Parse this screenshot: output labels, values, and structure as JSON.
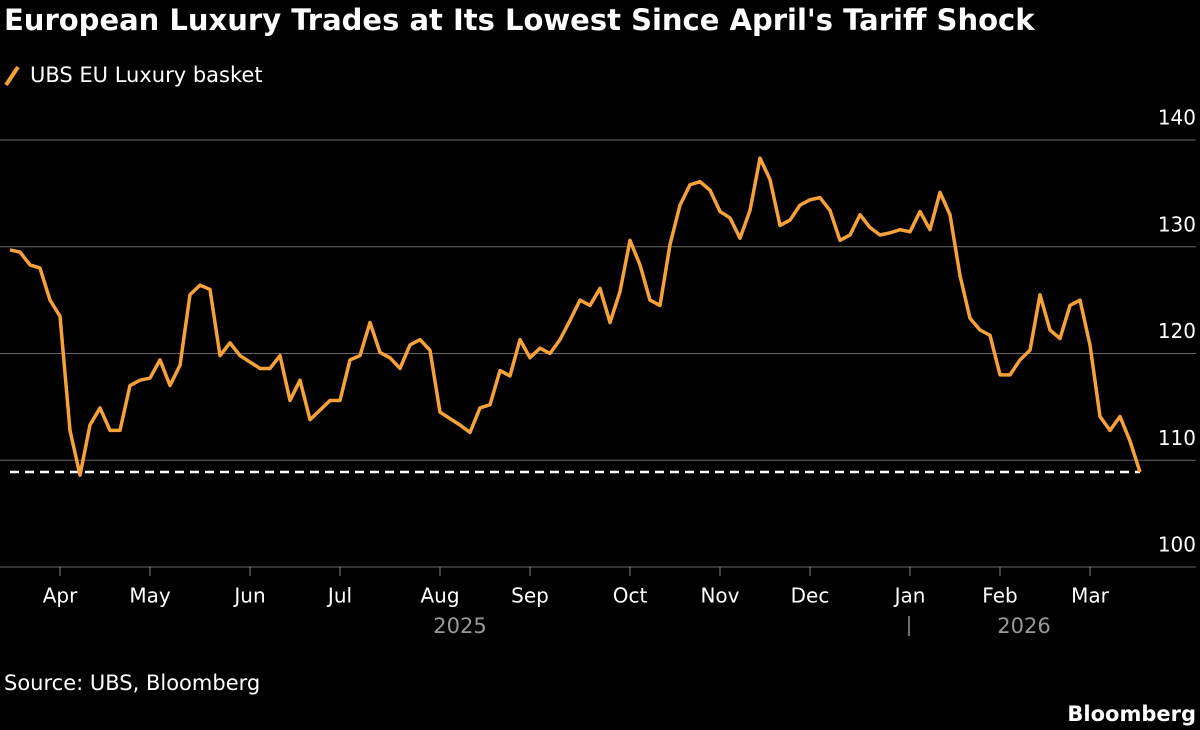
{
  "chart_data": {
    "type": "line",
    "title": "European Luxury Trades at Its Lowest Since April's Tariff Shock",
    "source": "Source: UBS, Bloomberg",
    "brand": "Bloomberg",
    "year_labels": [
      "2025",
      "2026"
    ],
    "categories": [
      null,
      null,
      null,
      null,
      null,
      "Apr",
      null,
      null,
      null,
      null,
      null,
      null,
      null,
      null,
      "May",
      null,
      null,
      null,
      null,
      null,
      null,
      null,
      null,
      null,
      "Jun",
      null,
      null,
      null,
      null,
      null,
      null,
      null,
      null,
      "Jul",
      null,
      null,
      null,
      null,
      null,
      null,
      null,
      null,
      null,
      "Aug",
      null,
      null,
      null,
      null,
      null,
      null,
      null,
      null,
      "Sep",
      null,
      null,
      null,
      null,
      null,
      null,
      null,
      null,
      null,
      "Oct",
      null,
      null,
      null,
      null,
      null,
      null,
      null,
      null,
      "Nov",
      null,
      null,
      null,
      null,
      null,
      null,
      null,
      null,
      "Dec",
      null,
      null,
      null,
      null,
      null,
      null,
      null,
      null,
      null,
      "Jan",
      null,
      null,
      null,
      null,
      null,
      null,
      null,
      null,
      "Feb",
      null,
      null,
      null,
      null,
      null,
      null,
      null,
      null,
      "Mar",
      null,
      null,
      null,
      null,
      null
    ],
    "series": [
      {
        "name": "UBS EU Luxury basket",
        "color": "#f7a13b",
        "values": [
          129.7,
          129.5,
          128.3,
          128,
          125,
          123.5,
          112.8,
          108.6,
          113.3,
          114.9,
          112.8,
          112.8,
          117,
          117.5,
          117.7,
          119.4,
          117,
          118.9,
          125.5,
          126.4,
          126,
          119.8,
          121,
          119.8,
          119.2,
          118.6,
          118.6,
          119.8,
          115.6,
          117.5,
          113.8,
          114.7,
          115.6,
          115.6,
          119.4,
          119.8,
          122.9,
          120.1,
          119.6,
          118.6,
          120.8,
          121.3,
          120.3,
          114.5,
          113.9,
          113.3,
          112.6,
          114.9,
          115.2,
          118.4,
          117.9,
          121.3,
          119.6,
          120.5,
          120,
          121.3,
          123.1,
          125,
          124.5,
          126.1,
          122.9,
          125.8,
          130.6,
          128.3,
          125,
          124.5,
          130.2,
          133.9,
          135.8,
          136.1,
          135.3,
          133.3,
          132.7,
          130.8,
          133.4,
          138.3,
          136.3,
          132,
          132.5,
          133.9,
          134.4,
          134.6,
          133.4,
          130.6,
          131.1,
          133,
          131.8,
          131.1,
          131.3,
          131.6,
          131.4,
          133.3,
          131.6,
          135.1,
          133,
          127.3,
          123.3,
          122.2,
          121.7,
          118,
          118,
          119.4,
          120.3,
          125.5,
          122.2,
          121.4,
          124.5,
          125,
          120.8,
          114.1,
          112.8,
          114.1,
          111.8,
          108.9
        ]
      }
    ],
    "reference_line": 108.9,
    "ylim": [
      100,
      140
    ],
    "yticks": [
      100,
      110,
      120,
      130,
      140
    ],
    "grid": true
  }
}
